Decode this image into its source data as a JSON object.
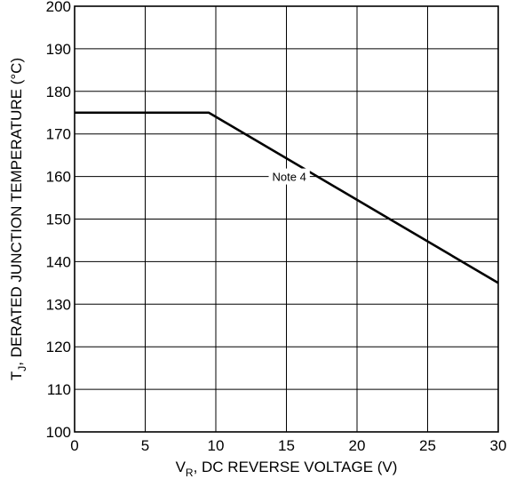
{
  "chart_data": {
    "type": "line",
    "title": "",
    "xlabel": {
      "main": "V",
      "sub": "R",
      "rest": ", DC REVERSE VOLTAGE (V)"
    },
    "ylabel": {
      "main": "T",
      "sub": "J",
      "rest": ", DERATED JUNCTION TEMPERATURE (°C)"
    },
    "xlim": [
      0,
      30
    ],
    "ylim": [
      100,
      200
    ],
    "xticks": [
      0,
      5,
      10,
      15,
      20,
      25,
      30
    ],
    "yticks": [
      100,
      110,
      120,
      130,
      140,
      150,
      160,
      170,
      180,
      190,
      200
    ],
    "grid": true,
    "legend": "none",
    "series": [
      {
        "x": [
          0,
          9.5,
          30
        ],
        "y": [
          175,
          175,
          135
        ]
      }
    ],
    "annotations": [
      {
        "text": "Note 4",
        "x": 15.2,
        "y": 160
      }
    ],
    "colors": {
      "line": "#000000",
      "grid": "#000000",
      "background": "#ffffff"
    }
  }
}
